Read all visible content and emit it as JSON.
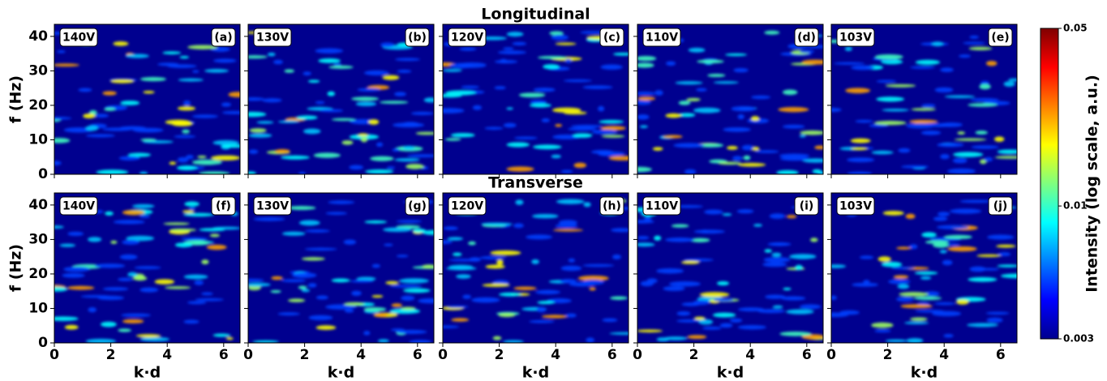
{
  "chart_data": [
    {
      "type": "heatmap",
      "voltage": "140V",
      "label": "(a)",
      "ylabel": "f (Hz)",
      "xlim": [
        0,
        6.58
      ],
      "ylim": [
        0,
        43.5
      ],
      "xticks": [
        0,
        2,
        4,
        6
      ],
      "yticks": [
        0,
        10,
        20,
        30,
        40
      ],
      "colormap": "jet"
    },
    {
      "type": "heatmap",
      "voltage": "130V",
      "label": "(b)",
      "xlim": [
        0,
        6.58
      ],
      "ylim": [
        0,
        43.5
      ],
      "xticks": [
        0,
        2,
        4,
        6
      ],
      "yticks": [
        0,
        10,
        20,
        30,
        40
      ],
      "colormap": "jet"
    },
    {
      "type": "heatmap",
      "title": "Longitudinal",
      "voltage": "120V",
      "label": "(c)",
      "xlim": [
        0,
        6.58
      ],
      "ylim": [
        0,
        43.5
      ],
      "xticks": [
        0,
        2,
        4,
        6
      ],
      "yticks": [
        0,
        10,
        20,
        30,
        40
      ],
      "colormap": "jet"
    },
    {
      "type": "heatmap",
      "voltage": "110V",
      "label": "(d)",
      "xlim": [
        0,
        6.58
      ],
      "ylim": [
        0,
        43.5
      ],
      "xticks": [
        0,
        2,
        4,
        6
      ],
      "yticks": [
        0,
        10,
        20,
        30,
        40
      ],
      "colormap": "jet"
    },
    {
      "type": "heatmap",
      "voltage": "103V",
      "label": "(e)",
      "xlim": [
        0,
        6.58
      ],
      "ylim": [
        0,
        43.5
      ],
      "xticks": [
        0,
        2,
        4,
        6
      ],
      "yticks": [
        0,
        10,
        20,
        30,
        40
      ],
      "colormap": "jet"
    },
    {
      "type": "heatmap",
      "voltage": "140V",
      "label": "(f)",
      "ylabel": "f (Hz)",
      "xlabel": "k·d",
      "xlim": [
        0,
        6.58
      ],
      "ylim": [
        0,
        43.5
      ],
      "xticks": [
        0,
        2,
        4,
        6
      ],
      "yticks": [
        0,
        10,
        20,
        30,
        40
      ],
      "colormap": "jet"
    },
    {
      "type": "heatmap",
      "voltage": "130V",
      "label": "(g)",
      "xlabel": "k·d",
      "xlim": [
        0,
        6.58
      ],
      "ylim": [
        0,
        43.5
      ],
      "xticks": [
        0,
        2,
        4,
        6
      ],
      "yticks": [
        0,
        10,
        20,
        30,
        40
      ],
      "colormap": "jet"
    },
    {
      "type": "heatmap",
      "title": "Transverse",
      "voltage": "120V",
      "label": "(h)",
      "xlabel": "k·d",
      "xlim": [
        0,
        6.58
      ],
      "ylim": [
        0,
        43.5
      ],
      "xticks": [
        0,
        2,
        4,
        6
      ],
      "yticks": [
        0,
        10,
        20,
        30,
        40
      ],
      "colormap": "jet"
    },
    {
      "type": "heatmap",
      "voltage": "110V",
      "label": "(i)",
      "xlabel": "k·d",
      "xlim": [
        0,
        6.58
      ],
      "ylim": [
        0,
        43.5
      ],
      "xticks": [
        0,
        2,
        4,
        6
      ],
      "yticks": [
        0,
        10,
        20,
        30,
        40
      ],
      "colormap": "jet"
    },
    {
      "type": "heatmap",
      "voltage": "103V",
      "label": "(j)",
      "xlabel": "k·d",
      "xlim": [
        0,
        6.58
      ],
      "ylim": [
        0,
        43.5
      ],
      "xticks": [
        0,
        2,
        4,
        6
      ],
      "yticks": [
        0,
        10,
        20,
        30,
        40
      ],
      "colormap": "jet"
    }
  ],
  "colorbar": {
    "label": "Intensity (log scale, a.u.)",
    "clim": [
      0.003,
      0.05
    ],
    "ticks": [
      0.003,
      0.01,
      0.05
    ],
    "log_scale": true,
    "colormap": "jet"
  }
}
